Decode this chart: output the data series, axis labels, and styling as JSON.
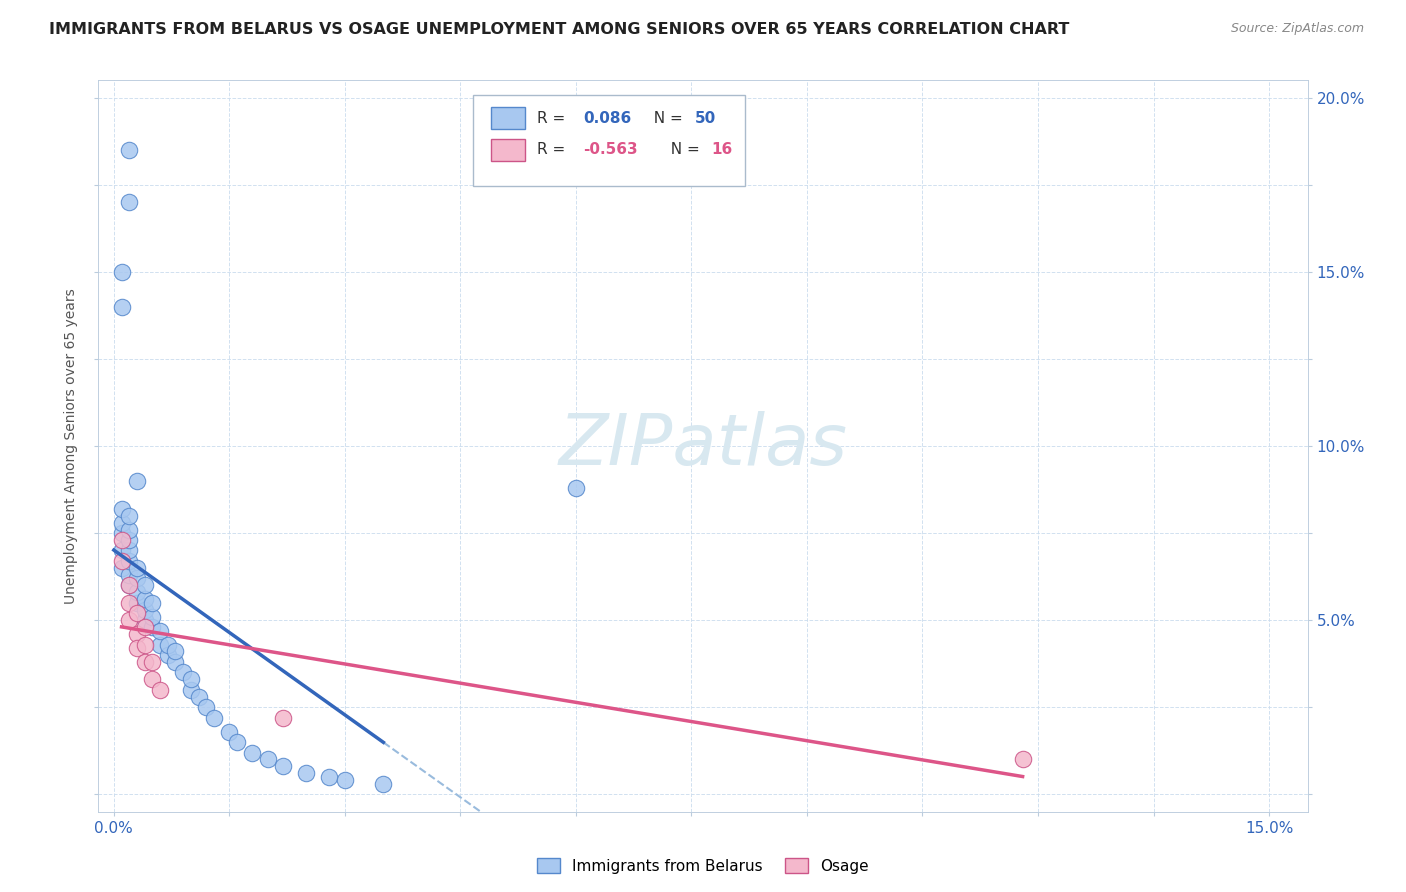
{
  "title": "IMMIGRANTS FROM BELARUS VS OSAGE UNEMPLOYMENT AMONG SENIORS OVER 65 YEARS CORRELATION CHART",
  "source": "Source: ZipAtlas.com",
  "ylabel": "Unemployment Among Seniors over 65 years",
  "xlim": [
    -0.002,
    0.155
  ],
  "ylim": [
    -0.005,
    0.205
  ],
  "xtick_positions": [
    0.0,
    0.015,
    0.03,
    0.045,
    0.06,
    0.075,
    0.09,
    0.105,
    0.12,
    0.135,
    0.15
  ],
  "ytick_positions": [
    0.0,
    0.025,
    0.05,
    0.075,
    0.1,
    0.125,
    0.15,
    0.175,
    0.2
  ],
  "ytick_labels": [
    "",
    "",
    "5.0%",
    "",
    "10.0%",
    "",
    "15.0%",
    "",
    "20.0%"
  ],
  "belarus_color": "#a8c8f0",
  "osage_color": "#f4b8cc",
  "belarus_edge_color": "#5588cc",
  "osage_edge_color": "#cc5588",
  "trendline_belarus_color": "#3366bb",
  "trendline_osage_color": "#dd5588",
  "trendline_dashed_color": "#99bbdd",
  "legend_R_val_belarus": "0.086",
  "legend_N_val_belarus": "50",
  "legend_R_val_osage": "-0.563",
  "legend_N_val_osage": "16",
  "val_color_belarus": "#3366bb",
  "val_color_osage": "#dd5588",
  "watermark_color": "#d8e8f0",
  "belarus_x": [
    0.001,
    0.001,
    0.001,
    0.001,
    0.001,
    0.002,
    0.002,
    0.002,
    0.002,
    0.002,
    0.002,
    0.002,
    0.003,
    0.003,
    0.003,
    0.003,
    0.004,
    0.004,
    0.004,
    0.004,
    0.005,
    0.005,
    0.005,
    0.006,
    0.006,
    0.007,
    0.007,
    0.008,
    0.008,
    0.009,
    0.01,
    0.01,
    0.011,
    0.012,
    0.013,
    0.015,
    0.016,
    0.018,
    0.02,
    0.022,
    0.025,
    0.028,
    0.03,
    0.035,
    0.001,
    0.001,
    0.002,
    0.002,
    0.003,
    0.06
  ],
  "belarus_y": [
    0.065,
    0.07,
    0.075,
    0.078,
    0.082,
    0.06,
    0.063,
    0.067,
    0.07,
    0.073,
    0.076,
    0.08,
    0.055,
    0.058,
    0.062,
    0.065,
    0.05,
    0.053,
    0.056,
    0.06,
    0.048,
    0.051,
    0.055,
    0.043,
    0.047,
    0.04,
    0.043,
    0.038,
    0.041,
    0.035,
    0.03,
    0.033,
    0.028,
    0.025,
    0.022,
    0.018,
    0.015,
    0.012,
    0.01,
    0.008,
    0.006,
    0.005,
    0.004,
    0.003,
    0.14,
    0.15,
    0.17,
    0.185,
    0.09,
    0.088
  ],
  "osage_x": [
    0.001,
    0.001,
    0.002,
    0.002,
    0.002,
    0.003,
    0.003,
    0.003,
    0.004,
    0.004,
    0.004,
    0.005,
    0.005,
    0.006,
    0.022,
    0.118
  ],
  "osage_y": [
    0.073,
    0.067,
    0.06,
    0.055,
    0.05,
    0.052,
    0.046,
    0.042,
    0.048,
    0.043,
    0.038,
    0.038,
    0.033,
    0.03,
    0.022,
    0.01
  ]
}
